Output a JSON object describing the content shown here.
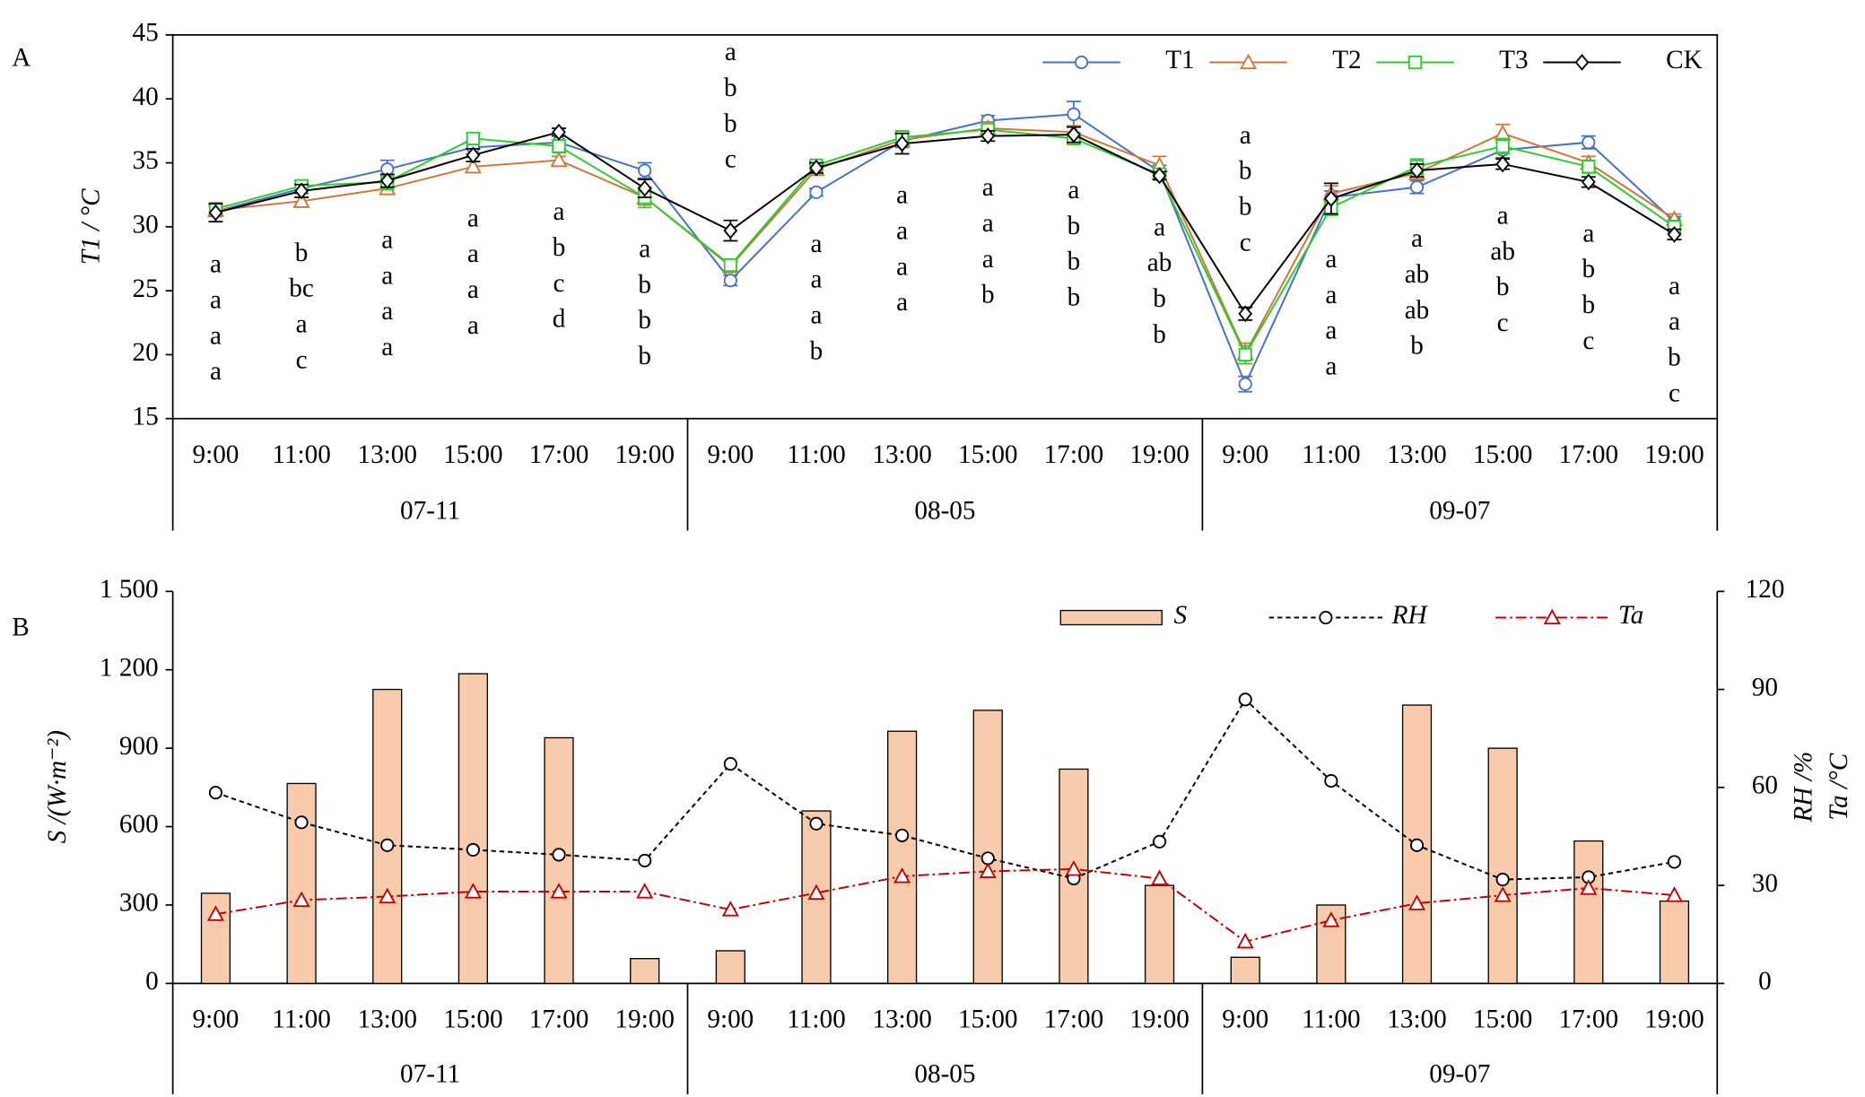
{
  "chart_data": [
    {
      "type": "line",
      "panel": "A",
      "y_label": "T1 / °C",
      "categories": [
        "9:00",
        "11:00",
        "13:00",
        "15:00",
        "17:00",
        "19:00",
        "9:00",
        "11:00",
        "13:00",
        "15:00",
        "17:00",
        "19:00",
        "9:00",
        "11:00",
        "13:00",
        "15:00",
        "17:00",
        "19:00"
      ],
      "groups": [
        "07-11",
        "08-05",
        "09-07"
      ],
      "ylim": [
        15,
        45
      ],
      "yticks": [
        15,
        20,
        25,
        30,
        35,
        40,
        45
      ],
      "series": [
        {
          "name": "T1",
          "color": "#4472c4",
          "marker": "circle",
          "values": [
            31.2,
            33.0,
            34.5,
            36.2,
            36.6,
            34.4,
            25.8,
            32.7,
            36.7,
            38.3,
            38.8,
            34.3,
            17.7,
            32.3,
            33.1,
            36.0,
            36.6,
            30.4
          ],
          "errors": [
            0.4,
            0.4,
            0.7,
            0.5,
            0.5,
            0.6,
            0.4,
            0.3,
            0.5,
            0.4,
            1.0,
            0.5,
            0.6,
            0.5,
            0.5,
            0.6,
            0.5,
            0.4
          ]
        },
        {
          "name": "T2",
          "color": "#d0763a",
          "marker": "triangle",
          "values": [
            31.3,
            32.0,
            33.0,
            34.7,
            35.2,
            32.3,
            26.9,
            34.5,
            36.8,
            37.7,
            37.4,
            34.8,
            20.1,
            32.6,
            34.2,
            37.3,
            35.0,
            30.6
          ],
          "errors": [
            0.4,
            0.3,
            0.4,
            0.4,
            0.3,
            0.6,
            0.4,
            0.4,
            0.5,
            0.5,
            0.5,
            0.7,
            0.8,
            0.6,
            0.5,
            0.7,
            0.5,
            0.4
          ]
        },
        {
          "name": "T3",
          "color": "#2fcc2f",
          "marker": "square",
          "values": [
            31.4,
            33.2,
            33.5,
            36.9,
            36.3,
            32.3,
            27.0,
            34.8,
            37.0,
            37.6,
            36.9,
            34.1,
            20.0,
            31.5,
            34.7,
            36.3,
            34.7,
            30.0
          ],
          "errors": [
            0.4,
            0.4,
            0.6,
            0.4,
            0.5,
            0.8,
            0.4,
            0.3,
            0.5,
            0.4,
            0.4,
            0.4,
            0.7,
            0.6,
            0.6,
            0.6,
            0.5,
            0.5
          ]
        },
        {
          "name": "CK",
          "color": "#000000",
          "marker": "diamond",
          "values": [
            31.1,
            32.8,
            33.6,
            35.6,
            37.4,
            33.0,
            29.7,
            34.6,
            36.5,
            37.1,
            37.2,
            34.0,
            23.2,
            32.2,
            34.4,
            34.9,
            33.5,
            29.4
          ],
          "errors": [
            0.7,
            0.5,
            0.5,
            0.5,
            0.3,
            0.7,
            0.8,
            0.4,
            0.8,
            0.4,
            0.6,
            0.3,
            0.5,
            1.2,
            0.5,
            0.4,
            0.4,
            0.4
          ]
        }
      ],
      "letters": [
        [
          "a",
          "a",
          "a",
          "a"
        ],
        [
          "b",
          "bc",
          "a",
          "c"
        ],
        [
          "a",
          "a",
          "a",
          "a"
        ],
        [
          "a",
          "a",
          "a",
          "a"
        ],
        [
          "a",
          "b",
          "c",
          "d"
        ],
        [
          "a",
          "b",
          "b",
          "b"
        ],
        [
          "a",
          "b",
          "b",
          "c"
        ],
        [
          "a",
          "a",
          "a",
          "b"
        ],
        [
          "a",
          "a",
          "a",
          "a"
        ],
        [
          "a",
          "a",
          "a",
          "b"
        ],
        [
          "a",
          "b",
          "b",
          "b"
        ],
        [
          "a",
          "ab",
          "b",
          "b"
        ],
        [
          "a",
          "b",
          "b",
          "c"
        ],
        [
          "a",
          "a",
          "a",
          "a"
        ],
        [
          "a",
          "ab",
          "ab",
          "b"
        ],
        [
          "a",
          "ab",
          "b",
          "c"
        ],
        [
          "a",
          "b",
          "b",
          "c"
        ],
        [
          "a",
          "a",
          "b",
          "c"
        ]
      ]
    },
    {
      "type": "bar",
      "panel": "B",
      "y_label": "S /(W·m⁻²)",
      "y2_label": "RH /%",
      "y3_label": "Ta /°C",
      "categories": [
        "9:00",
        "11:00",
        "13:00",
        "15:00",
        "17:00",
        "19:00",
        "9:00",
        "11:00",
        "13:00",
        "15:00",
        "17:00",
        "19:00",
        "9:00",
        "11:00",
        "13:00",
        "15:00",
        "17:00",
        "19:00"
      ],
      "groups": [
        "07-11",
        "08-05",
        "09-07"
      ],
      "ylim": [
        0,
        1500
      ],
      "yticks": [
        0,
        300,
        600,
        900,
        {
          "value": 1200,
          "label": "1 200"
        },
        {
          "value": 1500,
          "label": "1 500"
        }
      ],
      "y2lim": [
        0,
        120
      ],
      "y2ticks": [
        0,
        30,
        60,
        90,
        120
      ],
      "series": [
        {
          "name": "S",
          "type": "bar",
          "color": "#f8cbad",
          "values": [
            345,
            765,
            1125,
            1185,
            940,
            95,
            125,
            660,
            965,
            1045,
            820,
            375,
            100,
            300,
            1065,
            900,
            545,
            315
          ]
        },
        {
          "name": "RH",
          "type": "line",
          "axis": "y2",
          "color": "#000000",
          "marker": "circle",
          "dash": "dashed",
          "values": [
            58.4,
            49.3,
            42.3,
            40.9,
            39.4,
            37.6,
            67.2,
            48.9,
            45.3,
            38.3,
            32.1,
            43.4,
            86.9,
            62.0,
            42.3,
            31.8,
            32.5,
            37.2
          ]
        },
        {
          "name": "Ta",
          "type": "line",
          "axis": "y2",
          "color": "#c00000",
          "marker": "triangle",
          "dash": "dashdot",
          "values": [
            21.2,
            25.5,
            26.6,
            28.1,
            28.1,
            28.1,
            22.6,
            27.7,
            32.8,
            34.3,
            35.0,
            32.1,
            12.8,
            19.3,
            24.5,
            27.0,
            29.2,
            27.0
          ]
        }
      ]
    }
  ]
}
